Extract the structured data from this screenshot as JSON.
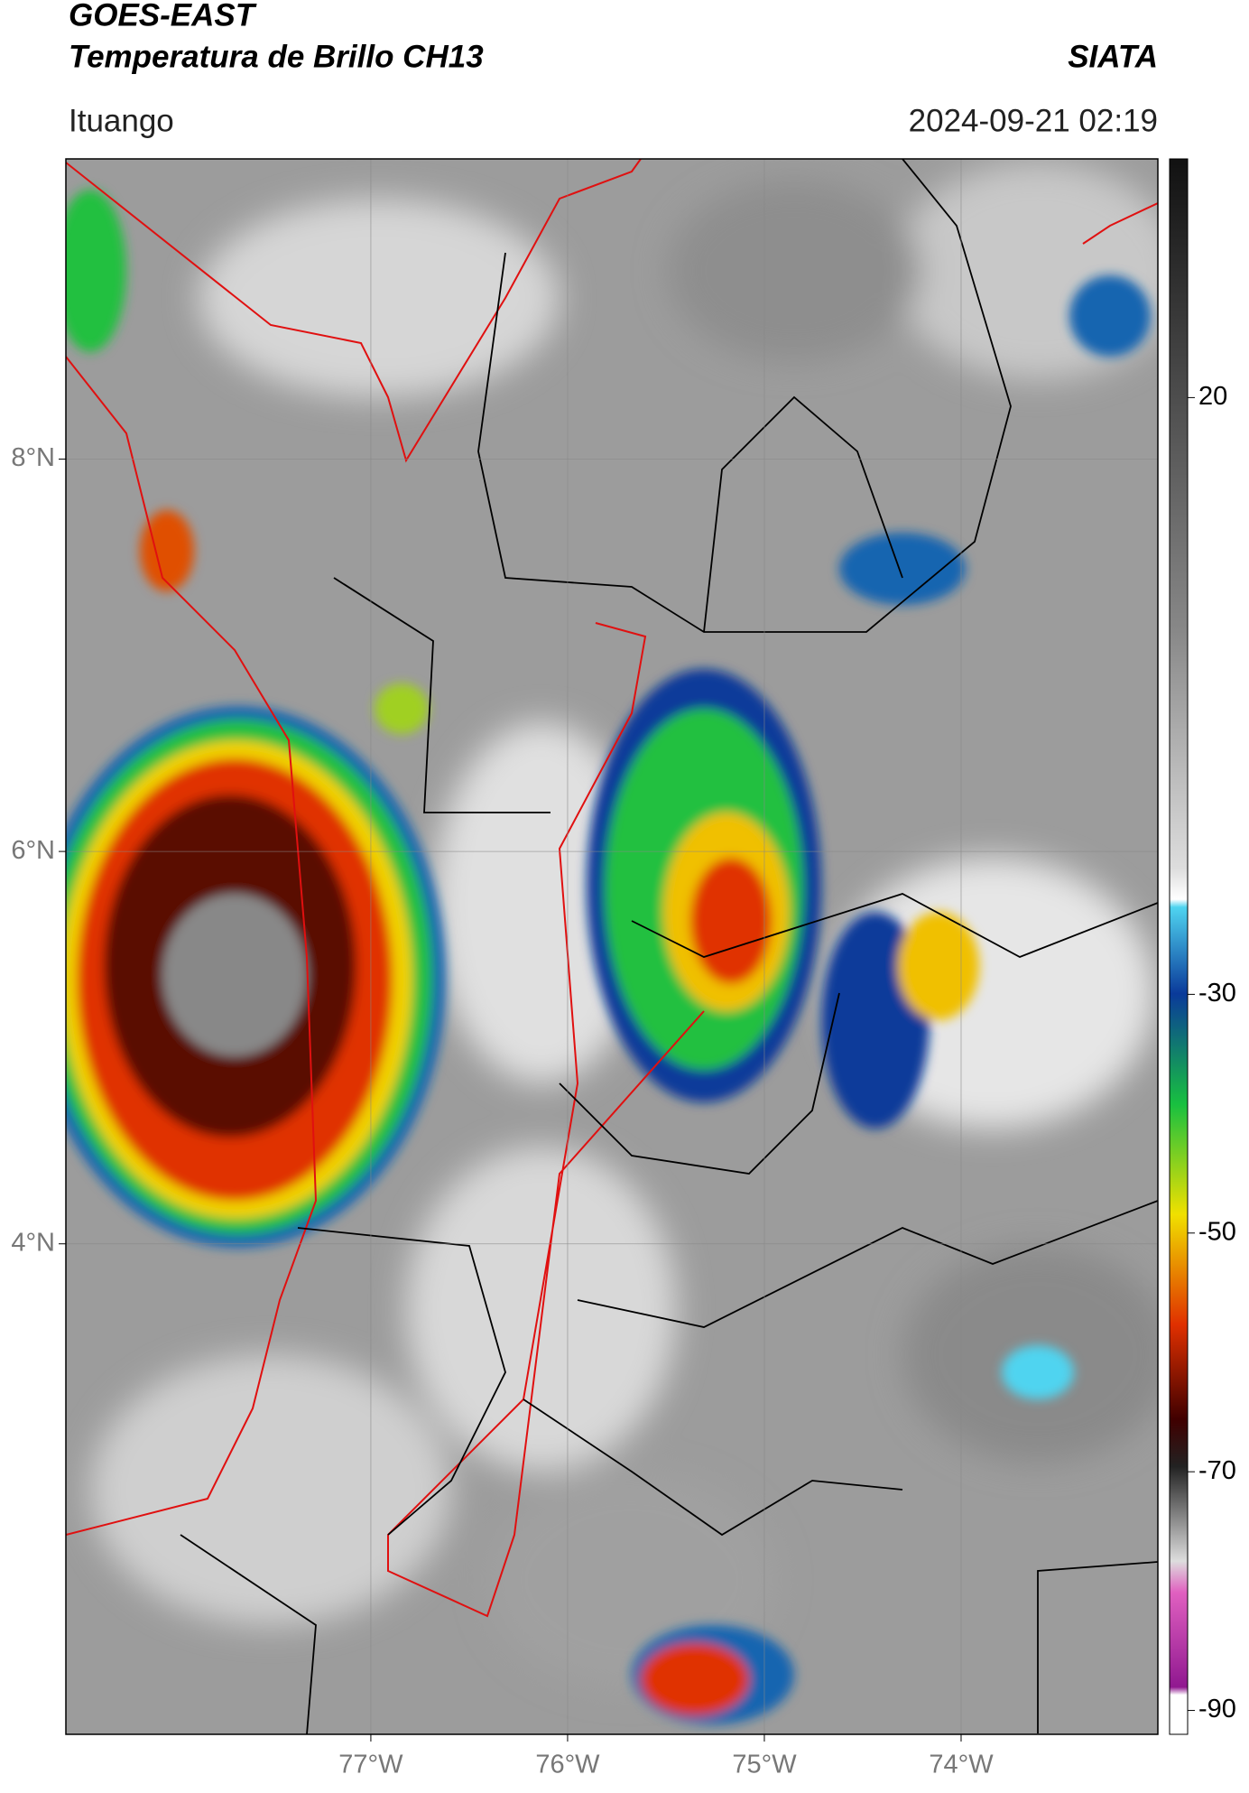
{
  "header": {
    "title_line1": "GOES-EAST",
    "title_line2": "Temperatura de Brillo CH13",
    "org": "SIATA",
    "location": "Ituango",
    "datetime": "2024-09-21 02:19"
  },
  "map": {
    "xlim": [
      -78.55,
      -73.0
    ],
    "ylim": [
      1.5,
      9.53
    ],
    "xticks": [
      {
        "value": -77,
        "label": "77°W"
      },
      {
        "value": -76,
        "label": "76°W"
      },
      {
        "value": -75,
        "label": "75°W"
      },
      {
        "value": -74,
        "label": "74°W"
      }
    ],
    "yticks": [
      {
        "value": 8,
        "label": "8°N"
      },
      {
        "value": 6,
        "label": "6°N"
      },
      {
        "value": 4,
        "label": "4°N"
      }
    ],
    "grid": true
  },
  "colorbar": {
    "lim": [
      -92,
      40
    ],
    "ticks": [
      20,
      -30,
      -50,
      -70,
      -90
    ]
  }
}
